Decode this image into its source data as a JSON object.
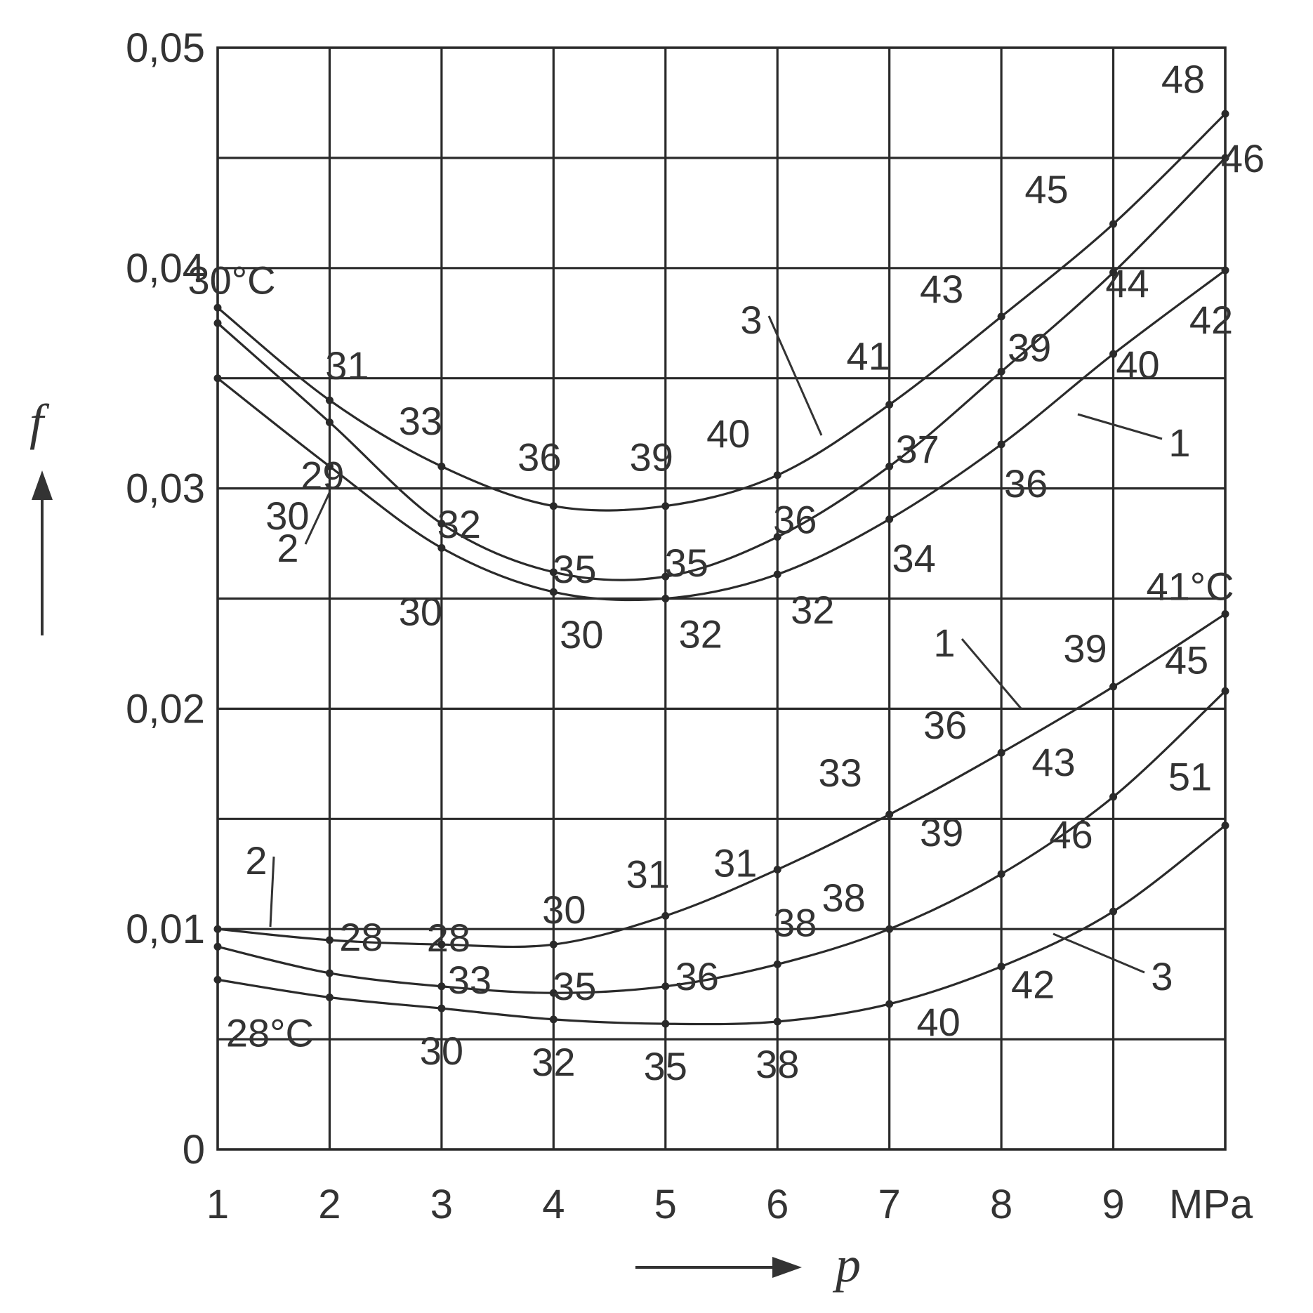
{
  "chart_data": {
    "type": "line",
    "xlabel": "p",
    "ylabel": "f",
    "x_unit": "MPa",
    "xlim": [
      1,
      10
    ],
    "ylim": [
      0,
      0.05
    ],
    "x_ticks": [
      "1",
      "2",
      "3",
      "4",
      "5",
      "6",
      "7",
      "8",
      "9"
    ],
    "y_ticks": [
      "0",
      "0,01",
      "0,02",
      "0,03",
      "0,04",
      "0,05"
    ],
    "grid": true,
    "groups": [
      {
        "temperature_unit": "°C",
        "series": [
          {
            "curve_label": "1",
            "x": [
              1,
              2,
              3,
              4,
              5,
              6,
              7,
              8,
              9,
              10
            ],
            "y": [
              0.035,
              0.031,
              0.0273,
              0.0253,
              0.025,
              0.0261,
              0.0286,
              0.032,
              0.0361,
              0.0399
            ],
            "point_labels": [
              "",
              "30",
              "30",
              "30",
              "32",
              "32",
              "34",
              "36",
              "40",
              "42"
            ]
          },
          {
            "curve_label": "2",
            "x": [
              1,
              2,
              3,
              4,
              5,
              6,
              7,
              8,
              9,
              10
            ],
            "y": [
              0.0375,
              0.033,
              0.0284,
              0.0262,
              0.026,
              0.0278,
              0.031,
              0.0353,
              0.0398,
              0.045
            ],
            "point_labels": [
              "",
              "29",
              "32",
              "35",
              "35",
              "36",
              "37",
              "39",
              "44",
              "46"
            ]
          },
          {
            "curve_label": "3",
            "x": [
              1,
              2,
              3,
              4,
              5,
              6,
              7,
              8,
              9,
              10
            ],
            "y": [
              0.0382,
              0.034,
              0.031,
              0.0292,
              0.0292,
              0.0306,
              0.0338,
              0.0378,
              0.042,
              0.047
            ],
            "point_labels": [
              "30°C",
              "31",
              "33",
              "36",
              "39",
              "40",
              "41",
              "43",
              "45",
              "48"
            ]
          }
        ]
      },
      {
        "temperature_unit": "°C",
        "series": [
          {
            "curve_label": "1",
            "x": [
              1,
              2,
              3,
              4,
              5,
              6,
              7,
              8,
              9,
              10
            ],
            "y": [
              0.01,
              0.0095,
              0.0093,
              0.0093,
              0.0106,
              0.0127,
              0.0152,
              0.018,
              0.021,
              0.0243
            ],
            "point_labels": [
              "",
              "28",
              "28",
              "30",
              "31",
              "31",
              "33",
              "36",
              "39",
              "41°C"
            ]
          },
          {
            "curve_label": "2",
            "x": [
              1,
              2,
              3,
              4,
              5,
              6,
              7,
              8,
              9,
              10
            ],
            "y": [
              0.0092,
              0.008,
              0.0074,
              0.0071,
              0.0074,
              0.0084,
              0.01,
              0.0125,
              0.016,
              0.0208
            ],
            "point_labels": [
              "",
              "",
              "33",
              "35",
              "36",
              "38",
              "38",
              "39",
              "43",
              "45"
            ]
          },
          {
            "curve_label": "3",
            "x": [
              1,
              2,
              3,
              4,
              5,
              6,
              7,
              8,
              9,
              10
            ],
            "y": [
              0.0077,
              0.0069,
              0.0064,
              0.0059,
              0.0057,
              0.0058,
              0.0066,
              0.0083,
              0.0108,
              0.0147
            ],
            "point_labels": [
              "",
              "28°C",
              "30",
              "32",
              "35",
              "38",
              "40",
              "42",
              "46",
              "51"
            ]
          }
        ]
      }
    ]
  }
}
